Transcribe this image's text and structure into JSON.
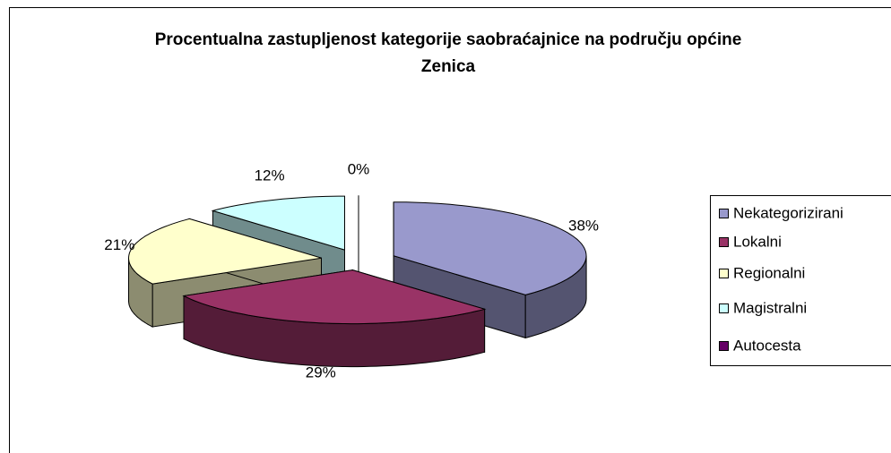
{
  "chart_data": {
    "type": "pie3d",
    "title": "Procentualna zastupljenost kategorije saobraćajnice na području općine Zenica",
    "categories": [
      "Nekategorizirani",
      "Lokalni",
      "Regionalni",
      "Magistralni",
      "Autocesta"
    ],
    "values": [
      38,
      29,
      21,
      12,
      0
    ],
    "value_labels": [
      "38%",
      "29%",
      "21%",
      "12%",
      "0%"
    ],
    "colors": [
      "#9999cc",
      "#993366",
      "#ffffcc",
      "#ccffff",
      "#660066"
    ],
    "legend": "right"
  }
}
